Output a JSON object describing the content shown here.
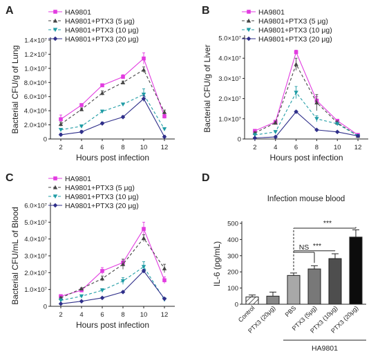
{
  "chart_data": [
    {
      "panel": "A",
      "type": "line",
      "xlabel": "Hours post infection",
      "ylabel": "Bacterial CFU/g of Lung",
      "x": [
        2,
        4,
        6,
        8,
        10,
        12
      ],
      "xticks": [
        "2",
        "4",
        "6",
        "8",
        "10",
        "12"
      ],
      "yticks": [
        "0",
        "2.0×10⁶",
        "4.0×10⁶",
        "6.0×10⁶",
        "8.0×10⁶",
        "1.0×10⁷",
        "1.2×10⁷",
        "1.4×10⁷"
      ],
      "ylim": [
        0,
        14000000
      ],
      "series": [
        {
          "name": "HA9801",
          "color": "#e23ce0",
          "marker": "square",
          "dash": "",
          "values": [
            2800000,
            4800000,
            7600000,
            8800000,
            11400000,
            3200000
          ],
          "err": [
            600000,
            200000,
            200000,
            300000,
            800000,
            300000
          ]
        },
        {
          "name": "HA9801+PTX3 (5 μg)",
          "color": "#444444",
          "marker": "triangle",
          "dash": "4,3",
          "values": [
            2100000,
            4200000,
            6500000,
            8000000,
            9800000,
            3800000
          ],
          "err": [
            300000,
            200000,
            300000,
            200000,
            400000,
            300000
          ]
        },
        {
          "name": "HA9801+PTX3 (10 μg)",
          "color": "#1f9ca5",
          "marker": "tri-down",
          "dash": "4,3",
          "values": [
            1300000,
            1800000,
            3900000,
            4900000,
            6300000,
            1400000
          ],
          "err": [
            200000,
            200000,
            200000,
            200000,
            800000,
            200000
          ]
        },
        {
          "name": "HA9801+PTX3 (20 μg)",
          "color": "#2f2f8a",
          "marker": "diamond",
          "dash": "",
          "values": [
            600000,
            1000000,
            2200000,
            3100000,
            5700000,
            300000
          ],
          "err": [
            200000,
            200000,
            200000,
            200000,
            400000,
            200000
          ]
        }
      ]
    },
    {
      "panel": "B",
      "type": "line",
      "xlabel": "Hours post infection",
      "ylabel": "Bacterial CFU/g of Liver",
      "x": [
        2,
        4,
        6,
        8,
        10,
        12
      ],
      "xticks": [
        "2",
        "4",
        "6",
        "8",
        "10",
        "12"
      ],
      "yticks": [
        "0",
        "1.0×10⁷",
        "2.0×10⁷",
        "3.0×10⁷",
        "4.0×10⁷",
        "5.0×10⁷"
      ],
      "ylim": [
        0,
        50000000
      ],
      "series": [
        {
          "name": "HA9801",
          "color": "#e23ce0",
          "marker": "square",
          "dash": "",
          "values": [
            4000000,
            8500000,
            43000000,
            19000000,
            9000000,
            2000000
          ],
          "err": [
            800000,
            500000,
            1000000,
            2000000,
            500000,
            500000
          ]
        },
        {
          "name": "HA9801+PTX3 (5 μg)",
          "color": "#444444",
          "marker": "triangle",
          "dash": "4,3",
          "values": [
            3000000,
            8000000,
            37000000,
            18000000,
            8000000,
            1500000
          ],
          "err": [
            500000,
            500000,
            3000000,
            4000000,
            1000000,
            300000
          ]
        },
        {
          "name": "HA9801+PTX3 (10 μg)",
          "color": "#1f9ca5",
          "marker": "tri-down",
          "dash": "4,3",
          "values": [
            2000000,
            3500000,
            23000000,
            10000000,
            7500000,
            1500000
          ],
          "err": [
            500000,
            300000,
            3000000,
            1500000,
            500000,
            300000
          ]
        },
        {
          "name": "HA9801+PTX3 (20 μg)",
          "color": "#2f2f8a",
          "marker": "diamond",
          "dash": "",
          "values": [
            500000,
            1000000,
            13500000,
            4500000,
            3500000,
            1500000
          ],
          "err": [
            300000,
            300000,
            500000,
            300000,
            300000,
            300000
          ]
        }
      ]
    },
    {
      "panel": "C",
      "type": "line",
      "xlabel": "Hours post infection",
      "ylabel": "Bacterial CFU/mL of Blood",
      "x": [
        2,
        4,
        6,
        8,
        10,
        12
      ],
      "xticks": [
        "2",
        "4",
        "6",
        "8",
        "10",
        "12"
      ],
      "yticks": [
        "0",
        "1.0×10⁷",
        "2.0×10⁷",
        "3.0×10⁷",
        "4.0×10⁷",
        "5.0×10⁷",
        "6.0×10⁷"
      ],
      "ylim": [
        0,
        60000000
      ],
      "series": [
        {
          "name": "HA9801",
          "color": "#e23ce0",
          "marker": "square",
          "dash": "",
          "values": [
            6000000,
            9500000,
            21000000,
            26000000,
            46000000,
            15500000
          ],
          "err": [
            1000000,
            500000,
            2000000,
            2000000,
            4000000,
            2000000
          ]
        },
        {
          "name": "HA9801+PTX3 (5 μg)",
          "color": "#444444",
          "marker": "triangle",
          "dash": "4,3",
          "values": [
            5000000,
            10500000,
            16500000,
            25000000,
            40500000,
            22500000
          ],
          "err": [
            500000,
            500000,
            1500000,
            3000000,
            2000000,
            2500000
          ]
        },
        {
          "name": "HA9801+PTX3 (10 μg)",
          "color": "#1f9ca5",
          "marker": "tri-down",
          "dash": "4,3",
          "values": [
            3500000,
            6000000,
            9500000,
            15000000,
            23500000,
            4000000
          ],
          "err": [
            1000000,
            500000,
            1000000,
            2000000,
            3000000,
            1000000
          ]
        },
        {
          "name": "HA9801+PTX3 (20 μg)",
          "color": "#2f2f8a",
          "marker": "diamond",
          "dash": "",
          "values": [
            1500000,
            3000000,
            5000000,
            8500000,
            21000000,
            4500000
          ],
          "err": [
            500000,
            300000,
            500000,
            500000,
            1000000,
            500000
          ]
        }
      ]
    },
    {
      "panel": "D",
      "type": "bar",
      "title": "Infection mouse blood",
      "ylabel": "IL-6 (pg/mL)",
      "ylim": [
        0,
        500
      ],
      "yticks": [
        "0",
        "100",
        "200",
        "300",
        "400",
        "500"
      ],
      "categories": [
        "Control",
        "PTX3 (20μg)",
        "PBS",
        "PTX3 (5μg)",
        "PTX3 (10μg)",
        "PTX3 (20μg)"
      ],
      "values": [
        45,
        50,
        178,
        218,
        282,
        415
      ],
      "errors": [
        12,
        25,
        15,
        20,
        30,
        45
      ],
      "fills": [
        "hatch",
        "#888888",
        "#a8a8a8",
        "#787878",
        "#4e4e4e",
        "#0c0c0c"
      ],
      "group_label": "HA9801",
      "comparisons": [
        {
          "from": "PBS",
          "to": "PTX3 (5μg)",
          "label": "NS"
        },
        {
          "from": "PBS",
          "to": "PTX3 (10μg)",
          "label": "***"
        },
        {
          "from": "PBS",
          "to": "PTX3 (20μg)",
          "label": "***"
        }
      ]
    }
  ]
}
